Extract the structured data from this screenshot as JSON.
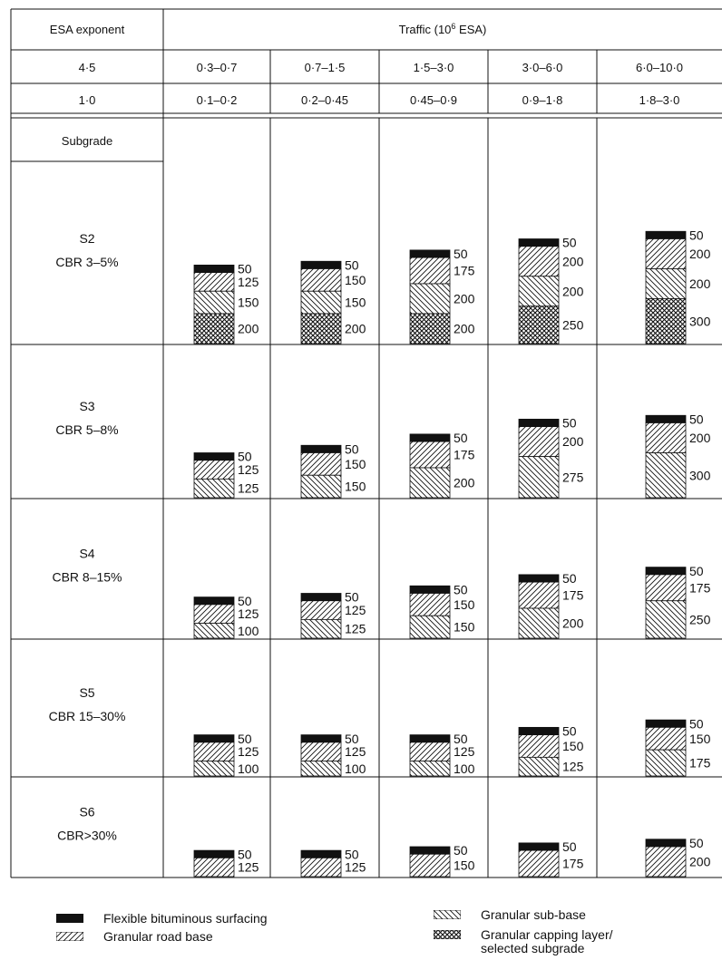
{
  "header": {
    "esa_exponent_label": "ESA exponent",
    "traffic_label_main": "Traffic (10",
    "traffic_label_sup": "6",
    "traffic_label_end": " ESA)",
    "subgrade_label": "Subgrade",
    "rows": [
      {
        "exponent": "4·5",
        "ranges": [
          "0·3–0·7",
          "0·7–1·5",
          "1·5–3·0",
          "3·0–6·0",
          "6·0–10·0"
        ]
      },
      {
        "exponent": "1·0",
        "ranges": [
          "0·1–0·2",
          "0·2–0·45",
          "0·45–0·9",
          "0·9–1·8",
          "1·8–3·0"
        ]
      }
    ]
  },
  "layer_types": {
    "surf": {
      "legend": "Flexible bituminous surfacing",
      "pattern": "solid-black"
    },
    "base": {
      "legend": "Granular road base",
      "pattern": "diagonal-hatch"
    },
    "sub": {
      "legend": "Granular sub-base",
      "pattern": "reverse-diagonal-hatch"
    },
    "cap": {
      "legend": "Granular capping layer/",
      "legend2": "selected subgrade",
      "pattern": "cross-hatch"
    }
  },
  "subgrades": [
    {
      "class": "S2",
      "cbr": "CBR 3–5%",
      "columns": [
        [
          [
            "surf",
            "50"
          ],
          [
            "base",
            "125"
          ],
          [
            "sub",
            "150"
          ],
          [
            "cap",
            "200"
          ]
        ],
        [
          [
            "surf",
            "50"
          ],
          [
            "base",
            "150"
          ],
          [
            "sub",
            "150"
          ],
          [
            "cap",
            "200"
          ]
        ],
        [
          [
            "surf",
            "50"
          ],
          [
            "base",
            "175"
          ],
          [
            "sub",
            "200"
          ],
          [
            "cap",
            "200"
          ]
        ],
        [
          [
            "surf",
            "50"
          ],
          [
            "base",
            "200"
          ],
          [
            "sub",
            "200"
          ],
          [
            "cap",
            "250"
          ]
        ],
        [
          [
            "surf",
            "50"
          ],
          [
            "base",
            "200"
          ],
          [
            "sub",
            "200"
          ],
          [
            "cap",
            "300"
          ]
        ]
      ]
    },
    {
      "class": "S3",
      "cbr": "CBR 5–8%",
      "columns": [
        [
          [
            "surf",
            "50"
          ],
          [
            "base",
            "125"
          ],
          [
            "sub",
            "125"
          ]
        ],
        [
          [
            "surf",
            "50"
          ],
          [
            "base",
            "150"
          ],
          [
            "sub",
            "150"
          ]
        ],
        [
          [
            "surf",
            "50"
          ],
          [
            "base",
            "175"
          ],
          [
            "sub",
            "200"
          ]
        ],
        [
          [
            "surf",
            "50"
          ],
          [
            "base",
            "200"
          ],
          [
            "sub",
            "275"
          ]
        ],
        [
          [
            "surf",
            "50"
          ],
          [
            "base",
            "200"
          ],
          [
            "sub",
            "300"
          ]
        ]
      ]
    },
    {
      "class": "S4",
      "cbr": "CBR 8–15%",
      "columns": [
        [
          [
            "surf",
            "50"
          ],
          [
            "base",
            "125"
          ],
          [
            "sub",
            "100"
          ]
        ],
        [
          [
            "surf",
            "50"
          ],
          [
            "base",
            "125"
          ],
          [
            "sub",
            "125"
          ]
        ],
        [
          [
            "surf",
            "50"
          ],
          [
            "base",
            "150"
          ],
          [
            "sub",
            "150"
          ]
        ],
        [
          [
            "surf",
            "50"
          ],
          [
            "base",
            "175"
          ],
          [
            "sub",
            "200"
          ]
        ],
        [
          [
            "surf",
            "50"
          ],
          [
            "base",
            "175"
          ],
          [
            "sub",
            "250"
          ]
        ]
      ]
    },
    {
      "class": "S5",
      "cbr": "CBR 15–30%",
      "columns": [
        [
          [
            "surf",
            "50"
          ],
          [
            "base",
            "125"
          ],
          [
            "sub",
            "100"
          ]
        ],
        [
          [
            "surf",
            "50"
          ],
          [
            "base",
            "125"
          ],
          [
            "sub",
            "100"
          ]
        ],
        [
          [
            "surf",
            "50"
          ],
          [
            "base",
            "125"
          ],
          [
            "sub",
            "100"
          ]
        ],
        [
          [
            "surf",
            "50"
          ],
          [
            "base",
            "150"
          ],
          [
            "sub",
            "125"
          ]
        ],
        [
          [
            "surf",
            "50"
          ],
          [
            "base",
            "150"
          ],
          [
            "sub",
            "175"
          ]
        ]
      ]
    },
    {
      "class": "S6",
      "cbr": "CBR>30%",
      "columns": [
        [
          [
            "surf",
            "50"
          ],
          [
            "base",
            "125"
          ]
        ],
        [
          [
            "surf",
            "50"
          ],
          [
            "base",
            "125"
          ]
        ],
        [
          [
            "surf",
            "50"
          ],
          [
            "base",
            "150"
          ]
        ],
        [
          [
            "surf",
            "50"
          ],
          [
            "base",
            "175"
          ]
        ],
        [
          [
            "surf",
            "50"
          ],
          [
            "base",
            "200"
          ]
        ]
      ]
    }
  ]
}
